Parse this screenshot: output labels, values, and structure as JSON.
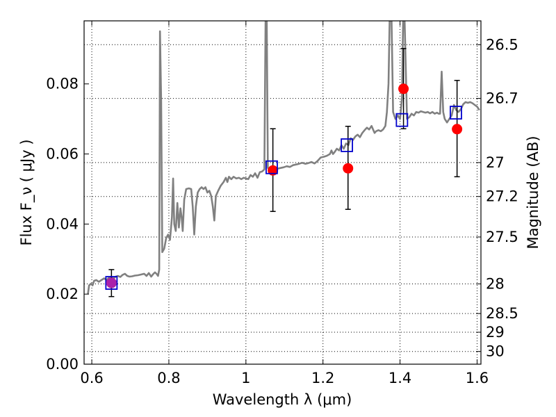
{
  "chart_data": {
    "type": "scatter",
    "xlabel": "Wavelength  λ (μm)",
    "ylabel": "Flux  F_ν  ( μJy )",
    "y2label": "Magnitude (AB)",
    "xlim": [
      0.58,
      1.61
    ],
    "ylim": [
      0.0,
      0.098
    ],
    "grid": true,
    "x_ticks": [
      {
        "value": 0.6,
        "label": "0.6"
      },
      {
        "value": 0.8,
        "label": "0.8"
      },
      {
        "value": 1.0,
        "label": "1"
      },
      {
        "value": 1.2,
        "label": "1.2"
      },
      {
        "value": 1.4,
        "label": "1.4"
      },
      {
        "value": 1.6,
        "label": "1.6"
      }
    ],
    "y_ticks": [
      {
        "value": 0.0,
        "label": "0.00"
      },
      {
        "value": 0.02,
        "label": "0.02"
      },
      {
        "value": 0.04,
        "label": "0.04"
      },
      {
        "value": 0.06,
        "label": "0.06"
      },
      {
        "value": 0.08,
        "label": "0.08"
      }
    ],
    "y2_ticks": [
      {
        "value": 26.5,
        "label": "26.5"
      },
      {
        "value": 26.7,
        "label": "26.7"
      },
      {
        "value": 27.0,
        "label": "27"
      },
      {
        "value": 27.2,
        "label": "27.2"
      },
      {
        "value": 27.5,
        "label": "27.5"
      },
      {
        "value": 28.0,
        "label": "28"
      },
      {
        "value": 28.5,
        "label": "28.5"
      },
      {
        "value": 29.0,
        "label": "29"
      },
      {
        "value": 30.0,
        "label": "30"
      }
    ],
    "series": [
      {
        "kind": "spectrum",
        "color": "#808080",
        "points": [
          [
            0.59,
            0.02
          ],
          [
            0.593,
            0.0225
          ],
          [
            0.598,
            0.023
          ],
          [
            0.602,
            0.0225
          ],
          [
            0.606,
            0.0238
          ],
          [
            0.612,
            0.024
          ],
          [
            0.618,
            0.0235
          ],
          [
            0.625,
            0.024
          ],
          [
            0.632,
            0.0245
          ],
          [
            0.638,
            0.024
          ],
          [
            0.644,
            0.0246
          ],
          [
            0.65,
            0.025
          ],
          [
            0.656,
            0.0244
          ],
          [
            0.662,
            0.025
          ],
          [
            0.668,
            0.0252
          ],
          [
            0.674,
            0.0249
          ],
          [
            0.68,
            0.0255
          ],
          [
            0.686,
            0.0258
          ],
          [
            0.692,
            0.0252
          ],
          [
            0.698,
            0.025
          ],
          [
            0.705,
            0.0251
          ],
          [
            0.712,
            0.0253
          ],
          [
            0.72,
            0.0254
          ],
          [
            0.728,
            0.0256
          ],
          [
            0.736,
            0.0258
          ],
          [
            0.742,
            0.0252
          ],
          [
            0.748,
            0.026
          ],
          [
            0.754,
            0.025
          ],
          [
            0.76,
            0.0258
          ],
          [
            0.764,
            0.0262
          ],
          [
            0.768,
            0.0258
          ],
          [
            0.772,
            0.0252
          ],
          [
            0.775,
            0.027
          ],
          [
            0.777,
            0.095
          ],
          [
            0.78,
            0.075
          ],
          [
            0.783,
            0.032
          ],
          [
            0.788,
            0.033
          ],
          [
            0.793,
            0.036
          ],
          [
            0.798,
            0.037
          ],
          [
            0.803,
            0.0355
          ],
          [
            0.808,
            0.042
          ],
          [
            0.811,
            0.053
          ],
          [
            0.814,
            0.04
          ],
          [
            0.818,
            0.038
          ],
          [
            0.822,
            0.046
          ],
          [
            0.826,
            0.039
          ],
          [
            0.83,
            0.0445
          ],
          [
            0.833,
            0.042
          ],
          [
            0.836,
            0.038
          ],
          [
            0.84,
            0.047
          ],
          [
            0.845,
            0.05
          ],
          [
            0.852,
            0.0502
          ],
          [
            0.858,
            0.05
          ],
          [
            0.862,
            0.045
          ],
          [
            0.866,
            0.037
          ],
          [
            0.87,
            0.045
          ],
          [
            0.875,
            0.049
          ],
          [
            0.88,
            0.05
          ],
          [
            0.885,
            0.0505
          ],
          [
            0.89,
            0.05
          ],
          [
            0.895,
            0.0505
          ],
          [
            0.9,
            0.049
          ],
          [
            0.905,
            0.0495
          ],
          [
            0.91,
            0.048
          ],
          [
            0.914,
            0.045
          ],
          [
            0.918,
            0.041
          ],
          [
            0.922,
            0.048
          ],
          [
            0.928,
            0.0495
          ],
          [
            0.935,
            0.051
          ],
          [
            0.942,
            0.052
          ],
          [
            0.948,
            0.0532
          ],
          [
            0.952,
            0.052
          ],
          [
            0.956,
            0.0535
          ],
          [
            0.962,
            0.0528
          ],
          [
            0.968,
            0.0535
          ],
          [
            0.975,
            0.053
          ],
          [
            0.982,
            0.0532
          ],
          [
            0.988,
            0.0528
          ],
          [
            0.994,
            0.0532
          ],
          [
            1.0,
            0.053
          ],
          [
            1.006,
            0.0528
          ],
          [
            1.012,
            0.054
          ],
          [
            1.018,
            0.0535
          ],
          [
            1.024,
            0.0545
          ],
          [
            1.03,
            0.0532
          ],
          [
            1.036,
            0.0548
          ],
          [
            1.042,
            0.055
          ],
          [
            1.048,
            0.0556
          ],
          [
            1.051,
            0.098
          ],
          [
            1.054,
            0.098
          ],
          [
            1.057,
            0.056
          ],
          [
            1.062,
            0.0555
          ],
          [
            1.068,
            0.0552
          ],
          [
            1.075,
            0.056
          ],
          [
            1.082,
            0.0558
          ],
          [
            1.09,
            0.056
          ],
          [
            1.098,
            0.0562
          ],
          [
            1.106,
            0.0565
          ],
          [
            1.114,
            0.0563
          ],
          [
            1.122,
            0.0568
          ],
          [
            1.13,
            0.057
          ],
          [
            1.138,
            0.0572
          ],
          [
            1.146,
            0.0575
          ],
          [
            1.154,
            0.0572
          ],
          [
            1.162,
            0.0574
          ],
          [
            1.17,
            0.0577
          ],
          [
            1.178,
            0.0573
          ],
          [
            1.186,
            0.058
          ],
          [
            1.194,
            0.059
          ],
          [
            1.202,
            0.0592
          ],
          [
            1.21,
            0.0595
          ],
          [
            1.218,
            0.06
          ],
          [
            1.222,
            0.061
          ],
          [
            1.226,
            0.06
          ],
          [
            1.23,
            0.0605
          ],
          [
            1.236,
            0.0615
          ],
          [
            1.242,
            0.061
          ],
          [
            1.248,
            0.0625
          ],
          [
            1.254,
            0.0615
          ],
          [
            1.26,
            0.063
          ],
          [
            1.266,
            0.0625
          ],
          [
            1.272,
            0.0645
          ],
          [
            1.278,
            0.064
          ],
          [
            1.284,
            0.065
          ],
          [
            1.29,
            0.0655
          ],
          [
            1.296,
            0.0648
          ],
          [
            1.302,
            0.066
          ],
          [
            1.308,
            0.0668
          ],
          [
            1.314,
            0.0675
          ],
          [
            1.32,
            0.067
          ],
          [
            1.326,
            0.068
          ],
          [
            1.33,
            0.067
          ],
          [
            1.334,
            0.066
          ],
          [
            1.338,
            0.0665
          ],
          [
            1.344,
            0.0668
          ],
          [
            1.35,
            0.0665
          ],
          [
            1.356,
            0.067
          ],
          [
            1.362,
            0.068
          ],
          [
            1.366,
            0.072
          ],
          [
            1.37,
            0.08
          ],
          [
            1.373,
            0.098
          ],
          [
            1.378,
            0.098
          ],
          [
            1.382,
            0.072
          ],
          [
            1.388,
            0.07
          ],
          [
            1.394,
            0.071
          ],
          [
            1.4,
            0.07
          ],
          [
            1.405,
            0.076
          ],
          [
            1.408,
            0.098
          ],
          [
            1.412,
            0.098
          ],
          [
            1.418,
            0.07
          ],
          [
            1.424,
            0.0705
          ],
          [
            1.43,
            0.0715
          ],
          [
            1.436,
            0.071
          ],
          [
            1.442,
            0.072
          ],
          [
            1.448,
            0.0718
          ],
          [
            1.454,
            0.0722
          ],
          [
            1.46,
            0.072
          ],
          [
            1.466,
            0.0718
          ],
          [
            1.472,
            0.072
          ],
          [
            1.478,
            0.0716
          ],
          [
            1.484,
            0.072
          ],
          [
            1.49,
            0.0715
          ],
          [
            1.496,
            0.0718
          ],
          [
            1.5,
            0.0715
          ],
          [
            1.504,
            0.0715
          ],
          [
            1.508,
            0.0835
          ],
          [
            1.512,
            0.072
          ],
          [
            1.516,
            0.07
          ],
          [
            1.522,
            0.069
          ],
          [
            1.528,
            0.07
          ],
          [
            1.534,
            0.071
          ],
          [
            1.54,
            0.074
          ],
          [
            1.546,
            0.0725
          ],
          [
            1.552,
            0.072
          ],
          [
            1.558,
            0.0728
          ],
          [
            1.564,
            0.0742
          ],
          [
            1.57,
            0.0748
          ],
          [
            1.576,
            0.0746
          ],
          [
            1.582,
            0.0748
          ],
          [
            1.588,
            0.0745
          ],
          [
            1.594,
            0.074
          ],
          [
            1.6,
            0.0735
          ],
          [
            1.606,
            0.0725
          ]
        ]
      },
      {
        "kind": "observed",
        "color": "#ff0000",
        "points": [
          {
            "x": 0.651,
            "y": 0.0232,
            "ylo": 0.0193,
            "yhi": 0.027
          },
          {
            "x": 1.07,
            "y": 0.0553,
            "ylo": 0.0436,
            "yhi": 0.0672
          },
          {
            "x": 1.265,
            "y": 0.0559,
            "ylo": 0.0442,
            "yhi": 0.0679
          },
          {
            "x": 1.409,
            "y": 0.0786,
            "ylo": 0.0672,
            "yhi": 0.0901
          },
          {
            "x": 1.548,
            "y": 0.0671,
            "ylo": 0.0535,
            "yhi": 0.081
          }
        ]
      },
      {
        "kind": "model",
        "color": "#0000cc",
        "points": [
          {
            "x": 0.651,
            "y": 0.0232
          },
          {
            "x": 1.067,
            "y": 0.0562
          },
          {
            "x": 1.262,
            "y": 0.0625
          },
          {
            "x": 1.405,
            "y": 0.0697
          },
          {
            "x": 1.545,
            "y": 0.0718
          }
        ]
      }
    ],
    "colors": {
      "overlap_marker": "#aa22aa"
    }
  }
}
